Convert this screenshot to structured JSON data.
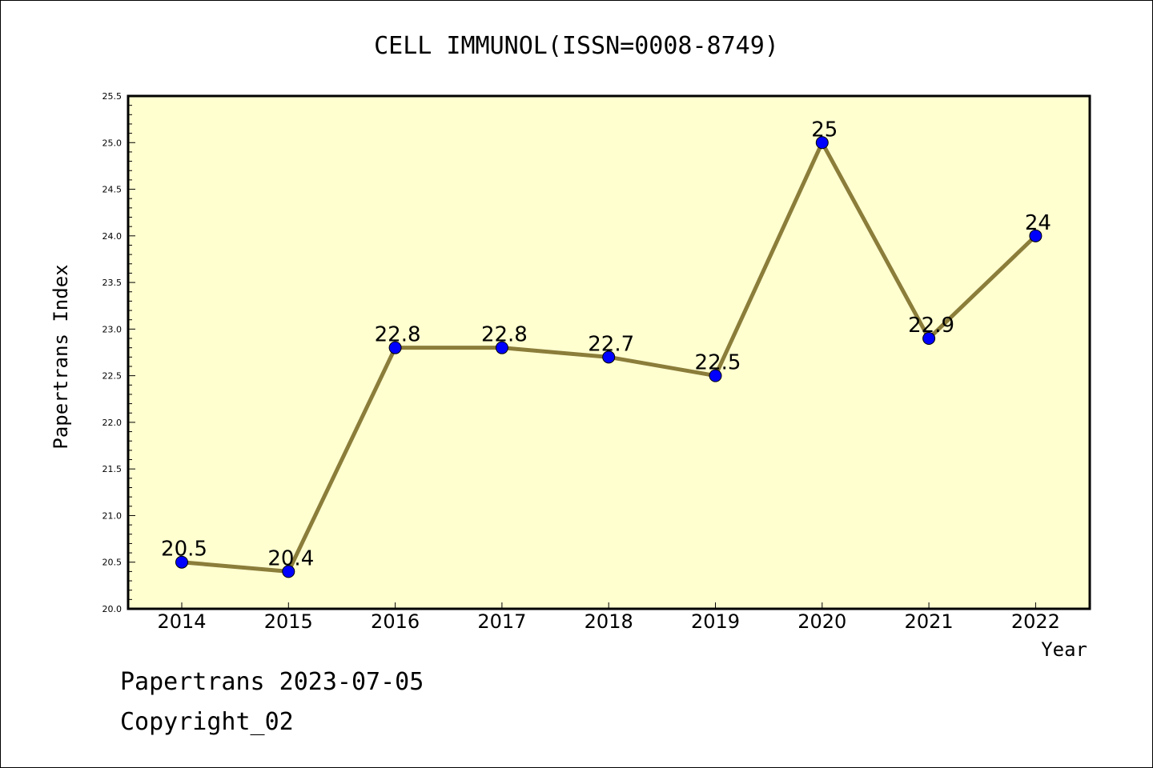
{
  "chart_data": {
    "type": "line",
    "title": "CELL IMMUNOL(ISSN=0008-8749)",
    "xlabel": "Year",
    "ylabel": "Papertrans Index",
    "categories": [
      "2014",
      "2015",
      "2016",
      "2017",
      "2018",
      "2019",
      "2020",
      "2021",
      "2022"
    ],
    "values": [
      20.5,
      20.4,
      22.8,
      22.8,
      22.7,
      22.5,
      25,
      22.9,
      24
    ],
    "value_labels": [
      "20.5",
      "20.4",
      "22.8",
      "22.8",
      "22.7",
      "22.5",
      "25",
      "22.9",
      "24"
    ],
    "ylim": [
      20.0,
      25.5
    ],
    "yticks": [
      "20.0",
      "20.5",
      "21.0",
      "21.5",
      "22.0",
      "22.5",
      "23.0",
      "23.5",
      "24.0",
      "24.5",
      "25.0",
      "25.5"
    ],
    "grid": false,
    "colors": {
      "plot_background": "#ffffd0",
      "line": "#8b7d3a",
      "marker": "#0000ff",
      "axes": "#000000"
    }
  },
  "footer": {
    "stamp": "Papertrans 2023-07-05",
    "copyright": "Copyright_02"
  }
}
